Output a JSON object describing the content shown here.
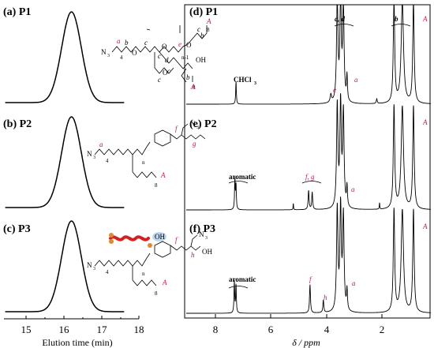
{
  "colors": {
    "ink": "#000000",
    "annotation": "#d4145a",
    "polymer_red": "#d62020",
    "cap_orange": "#e3892b",
    "oh_bubble": "#bcd7ef"
  },
  "gpc": {
    "xlabel": "Elution time (min)",
    "ticks": [
      15,
      16,
      17,
      18
    ],
    "panels": [
      {
        "label": "(a) P1",
        "peak_min": 16.2
      },
      {
        "label": "(b) P2",
        "peak_min": 16.2
      },
      {
        "label": "(c) P3",
        "peak_min": 16.2
      }
    ]
  },
  "nmr": {
    "xlabel": "δ / ppm",
    "ticks": [
      8,
      6,
      4,
      2
    ],
    "panels": [
      {
        "label": "(d) P1",
        "solvent": "CHCl",
        "solvent_sub": "3",
        "peak_labels": [
          "c, d",
          "b",
          "e",
          "a",
          "A"
        ]
      },
      {
        "label": "(e) P2",
        "region_label": "aromatic",
        "peak_labels": [
          "f, g",
          "a",
          "A"
        ]
      },
      {
        "label": "(f) P3",
        "region_label": "aromatic",
        "peak_labels": [
          "f",
          "h",
          "a",
          "A"
        ]
      }
    ]
  },
  "structures": {
    "p1": {
      "azide": "N",
      "azide_sub": "3",
      "oh": "OH",
      "labels": [
        "a",
        "b",
        "c",
        "c",
        "d",
        "c",
        "c",
        "e",
        "c",
        "b",
        "A",
        "b",
        "A"
      ],
      "subscripts": [
        "4",
        "n-1",
        "8",
        "8"
      ]
    },
    "p2": {
      "azide": "N",
      "azide_sub": "3",
      "labels": [
        "a",
        "f",
        "g",
        "A"
      ],
      "subscripts": [
        "4",
        "n",
        "8"
      ],
      "pendant": "N",
      "pendant_sub": "3"
    },
    "p3": {
      "azide": "N",
      "azide_sub": "3",
      "labels": [
        "f",
        "h",
        "A"
      ],
      "subscripts": [
        "4",
        "n",
        "8"
      ],
      "oh": "OH",
      "pendant": "N",
      "pendant_sub": "3",
      "cartoon_oh": "OH"
    }
  }
}
